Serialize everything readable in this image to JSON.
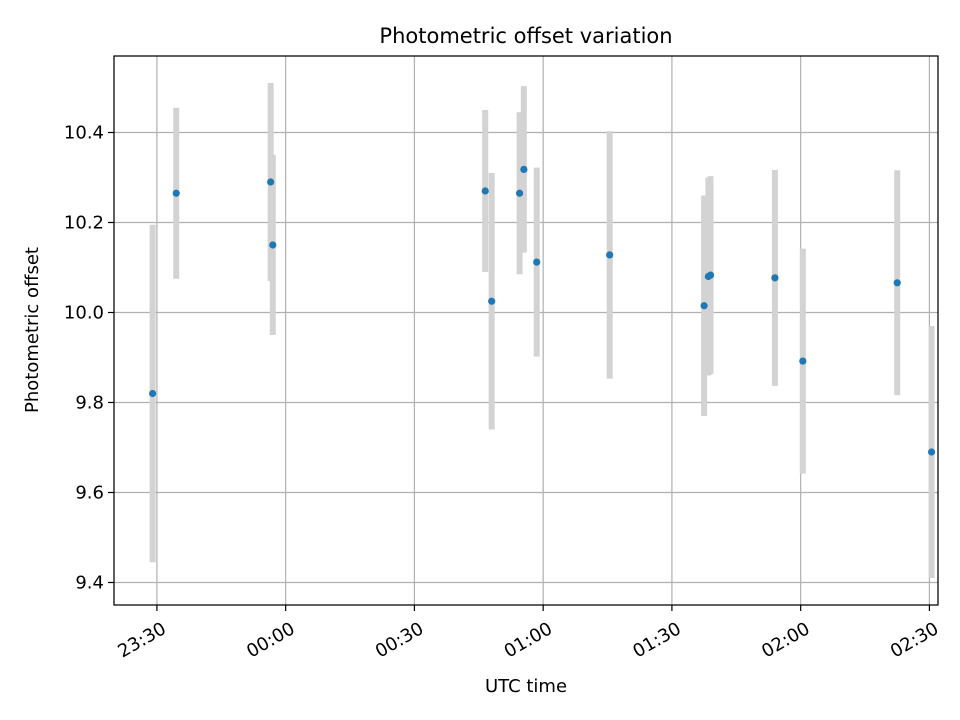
{
  "chart_data": {
    "type": "scatter",
    "title": "Photometric offset variation",
    "xlabel": "UTC time",
    "ylabel": "Photometric offset",
    "grid": true,
    "x_unit": "minutes relative to 00:00 UTC",
    "xlim": [
      -40,
      152
    ],
    "ylim": [
      9.35,
      10.57
    ],
    "xticks": [
      {
        "value": -30,
        "label": "23:30"
      },
      {
        "value": 0,
        "label": "00:00"
      },
      {
        "value": 30,
        "label": "00:30"
      },
      {
        "value": 60,
        "label": "01:00"
      },
      {
        "value": 90,
        "label": "01:30"
      },
      {
        "value": 120,
        "label": "02:00"
      },
      {
        "value": 150,
        "label": "02:30"
      }
    ],
    "yticks": [
      {
        "value": 9.4,
        "label": "9.4"
      },
      {
        "value": 9.6,
        "label": "9.6"
      },
      {
        "value": 9.8,
        "label": "9.8"
      },
      {
        "value": 10.0,
        "label": "10.0"
      },
      {
        "value": 10.2,
        "label": "10.2"
      },
      {
        "value": 10.4,
        "label": "10.4"
      }
    ],
    "colors": {
      "marker": "#1f77b4",
      "errorbar": "#d3d3d3",
      "grid": "#b0b0b0"
    },
    "points": [
      {
        "x": -31.0,
        "y": 9.82,
        "err": 0.375
      },
      {
        "x": -25.5,
        "y": 10.265,
        "err": 0.19
      },
      {
        "x": -3.5,
        "y": 10.29,
        "err": 0.22
      },
      {
        "x": -3.0,
        "y": 10.15,
        "err": 0.2
      },
      {
        "x": 46.5,
        "y": 10.27,
        "err": 0.18
      },
      {
        "x": 48.0,
        "y": 10.025,
        "err": 0.285
      },
      {
        "x": 54.5,
        "y": 10.265,
        "err": 0.18
      },
      {
        "x": 55.5,
        "y": 10.318,
        "err": 0.185
      },
      {
        "x": 58.5,
        "y": 10.112,
        "err": 0.21
      },
      {
        "x": 75.5,
        "y": 10.128,
        "err": 0.275
      },
      {
        "x": 97.5,
        "y": 10.015,
        "err": 0.245
      },
      {
        "x": 98.5,
        "y": 10.08,
        "err": 0.22
      },
      {
        "x": 99.0,
        "y": 10.083,
        "err": 0.22
      },
      {
        "x": 114.0,
        "y": 10.077,
        "err": 0.24
      },
      {
        "x": 120.5,
        "y": 9.892,
        "err": 0.25
      },
      {
        "x": 142.5,
        "y": 10.066,
        "err": 0.25
      },
      {
        "x": 150.5,
        "y": 9.69,
        "err": 0.28
      }
    ]
  }
}
